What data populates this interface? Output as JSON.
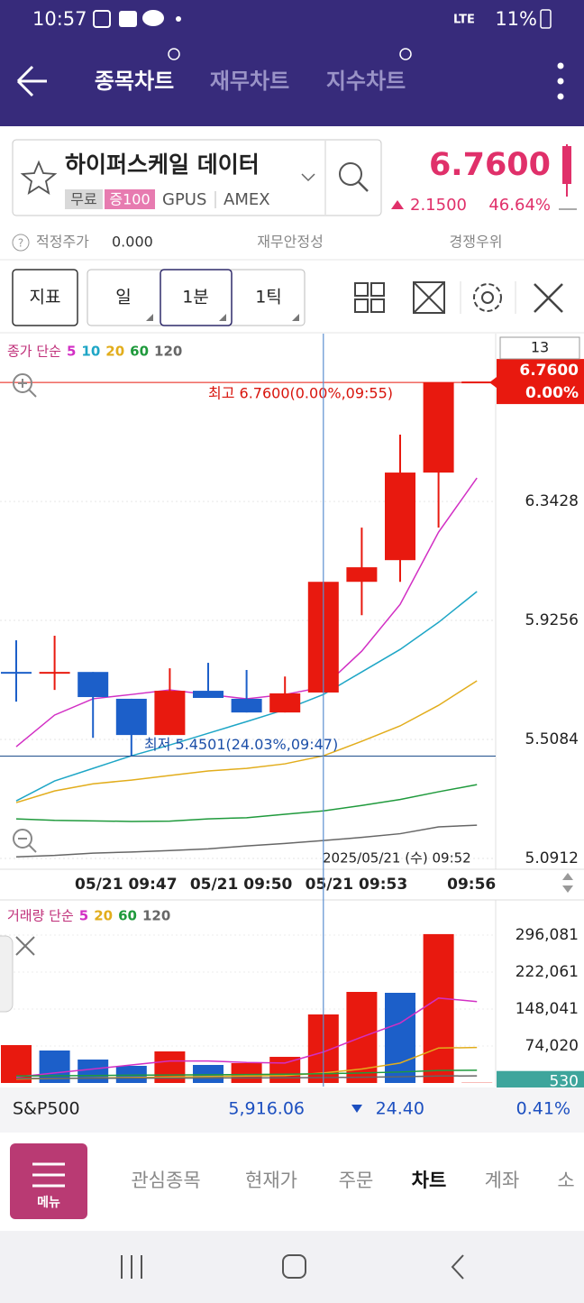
{
  "status_bar": {
    "time": "10:57",
    "network": "LTE",
    "battery": "11%"
  },
  "header": {
    "tabs": [
      "종목차트",
      "재무차트",
      "지수차트"
    ]
  },
  "stock": {
    "name": "하이퍼스케일 데이터",
    "badges": [
      "무료",
      "증100"
    ],
    "ticker": "GPUS",
    "exchange": "AMEX",
    "price": "6.7600",
    "change": "2.1500",
    "change_pct": "46.64%"
  },
  "info_row": {
    "label": "적정주가",
    "value": "0.000",
    "links": [
      "재무안정성",
      "경쟁우위"
    ]
  },
  "toolbar": {
    "indicator": "지표",
    "periods": [
      "일",
      "1분",
      "1틱"
    ]
  },
  "price_chart": {
    "type": "candlestick",
    "legend_title": "종가 단순",
    "categories": [
      null,
      null,
      null,
      "05/21 09:47",
      null,
      null,
      "05/21 09:50",
      null,
      null,
      "05/21 09:53",
      null,
      null,
      "09:56"
    ],
    "open": [
      5.742,
      5.74,
      5.745,
      5.651,
      5.524,
      5.679,
      5.651,
      5.603,
      5.673,
      6.061,
      6.137,
      6.444,
      6.76
    ],
    "high": [
      5.856,
      5.872,
      5.745,
      5.651,
      5.758,
      5.777,
      5.752,
      5.729,
      6.061,
      6.251,
      6.577,
      6.76,
      6.76
    ],
    "low": [
      5.641,
      5.682,
      5.514,
      5.4501,
      5.524,
      5.654,
      5.603,
      5.603,
      5.673,
      5.944,
      6.061,
      6.251,
      6.76
    ],
    "close": [
      5.739,
      5.742,
      5.657,
      5.524,
      5.679,
      5.654,
      5.603,
      5.67,
      6.061,
      6.112,
      6.444,
      6.76,
      6.76
    ],
    "up_color": "#e8190f",
    "down_color": "#1c5fc9",
    "series": [
      {
        "name": "5",
        "color": "#d22fc4",
        "values": [
          5.483,
          5.594,
          5.651,
          5.666,
          5.682,
          5.666,
          5.651,
          5.666,
          5.692,
          5.818,
          5.982,
          6.235,
          6.425
        ]
      },
      {
        "name": "10",
        "color": "#1ea6c6",
        "values": [
          5.293,
          5.363,
          5.407,
          5.451,
          5.489,
          5.53,
          5.571,
          5.613,
          5.666,
          5.745,
          5.824,
          5.919,
          6.027
        ]
      },
      {
        "name": "20",
        "color": "#e2ad1c",
        "values": [
          5.287,
          5.328,
          5.353,
          5.366,
          5.382,
          5.398,
          5.407,
          5.423,
          5.451,
          5.502,
          5.556,
          5.628,
          5.714
        ]
      },
      {
        "name": "60",
        "color": "#1f9a3c",
        "values": [
          5.23,
          5.225,
          5.223,
          5.221,
          5.222,
          5.23,
          5.234,
          5.246,
          5.258,
          5.277,
          5.298,
          5.325,
          5.35
        ]
      },
      {
        "name": "120",
        "color": "#666666",
        "values": [
          5.097,
          5.102,
          5.11,
          5.114,
          5.119,
          5.125,
          5.135,
          5.144,
          5.154,
          5.165,
          5.178,
          5.202,
          5.208
        ]
      }
    ],
    "ylim": [
      5.066,
      6.931
    ],
    "yticks": [
      5.0912,
      5.5084,
      5.9256,
      6.3428
    ],
    "current": {
      "value": 6.76,
      "label": "6.7600",
      "change": "0.00%"
    },
    "high_marker": {
      "value": 6.76,
      "label": "최고 6.7600(0.00%,09:55)"
    },
    "low_marker": {
      "value": 5.4501,
      "label": "최저 5.4501(24.03%,09:47)"
    },
    "crosshair_label": "2025/05/21 (수) 09:52",
    "visible_count": 13
  },
  "volume_chart": {
    "type": "bar",
    "legend_title": "거래량 단순",
    "values": [
      75800,
      65000,
      46900,
      34300,
      63200,
      36100,
      39700,
      52300,
      137200,
      182300,
      180500,
      298000,
      530
    ],
    "colors": [
      "#e8190f",
      "#1c5fc9",
      "#1c5fc9",
      "#1c5fc9",
      "#e8190f",
      "#1c5fc9",
      "#e8190f",
      "#e8190f",
      "#e8190f",
      "#e8190f",
      "#1c5fc9",
      "#e8190f",
      "#e8190f"
    ],
    "series": [
      {
        "name": "5",
        "color": "#d22fc4",
        "values": [
          12000,
          20000,
          28000,
          36000,
          44000,
          44000,
          41000,
          40000,
          62000,
          92000,
          120000,
          170000,
          163000
        ]
      },
      {
        "name": "20",
        "color": "#e2ad1c",
        "values": [
          8000,
          9000,
          10000,
          11000,
          12000,
          13000,
          14000,
          15000,
          20000,
          28000,
          40000,
          70000,
          71000
        ]
      },
      {
        "name": "60",
        "color": "#1f9a3c",
        "values": [
          14000,
          14500,
          15000,
          15500,
          16000,
          16500,
          17000,
          17500,
          18500,
          20000,
          22000,
          25000,
          25500
        ]
      },
      {
        "name": "120",
        "color": "#666666",
        "values": [
          9000,
          9200,
          9400,
          9600,
          9800,
          10000,
          10200,
          10400,
          10800,
          11500,
          12500,
          14000,
          14200
        ]
      }
    ],
    "ylim": [
      0,
      353800
    ],
    "yticks": [
      {
        "value": 74020,
        "label": "74,020"
      },
      {
        "value": 148041,
        "label": "148,041"
      },
      {
        "value": 222061,
        "label": "222,061"
      },
      {
        "value": 296081,
        "label": "296,081"
      }
    ]
  },
  "index_bar": {
    "name": "S&P500",
    "value": "5,916.06",
    "change": "24.40",
    "change_pct": "0.41%"
  },
  "bottom_nav": {
    "menu": "메뉴",
    "items": [
      "관심종목",
      "현재가",
      "주문",
      "차트",
      "계좌",
      "소"
    ]
  }
}
